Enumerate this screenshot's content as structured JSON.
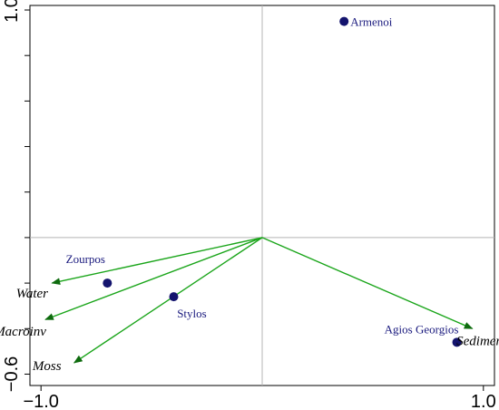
{
  "chart_data": {
    "type": "scatter",
    "title": "",
    "xlabel": "",
    "ylabel": "",
    "xlim": [
      -1.05,
      1.05
    ],
    "ylim": [
      -0.65,
      1.02
    ],
    "x_tick_labels": [
      {
        "value": -1.0,
        "label": "−1.0"
      },
      {
        "value": 1.0,
        "label": "1.0"
      }
    ],
    "y_tick_labels": [
      {
        "value": -0.6,
        "label": "−0.6"
      },
      {
        "value": 1.0,
        "label": "1.0"
      }
    ],
    "y_minor_ticks": [
      -0.6,
      -0.4,
      -0.2,
      0.0,
      0.2,
      0.4,
      0.6,
      0.8,
      1.0
    ],
    "reference_lines": {
      "x": 0,
      "y": 0
    },
    "points": [
      {
        "label": "Armenoi",
        "x": 0.37,
        "y": 0.95
      },
      {
        "label": "Zourpos",
        "x": -0.7,
        "y": -0.2
      },
      {
        "label": "Stylos",
        "x": -0.4,
        "y": -0.26
      },
      {
        "label": "Agios Georgios",
        "x": 0.88,
        "y": -0.46
      }
    ],
    "vectors": [
      {
        "label": "Water",
        "x": -0.95,
        "y": -0.2
      },
      {
        "label": "Macroinv",
        "x": -0.98,
        "y": -0.36
      },
      {
        "label": "Moss",
        "x": -0.85,
        "y": -0.55
      },
      {
        "label": "Sediment",
        "x": 0.95,
        "y": -0.4
      }
    ],
    "colors": {
      "points": "#14146e",
      "vectors": "#1aa51a",
      "reference": "#b4b4b4",
      "labels": "#1a1a7e"
    },
    "grid": false
  }
}
